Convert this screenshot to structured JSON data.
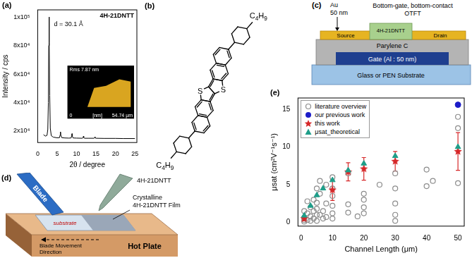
{
  "chart_data": [
    {
      "panel": "(a)",
      "type": "line",
      "x_label": "2θ / degree",
      "y_label": "Intensity / cps",
      "annotations": [
        "d = 30.1 Å",
        "4H-21DNTT"
      ],
      "inset": {
        "title": "Rms 7.87 nm",
        "labels": [
          "0",
          "[nm]",
          "54.74 µm"
        ]
      },
      "x": [
        1.5,
        2.0,
        2.4,
        2.6,
        2.75,
        2.85,
        2.93,
        3.0,
        3.1,
        3.25,
        3.5,
        4.0,
        5.0,
        5.6,
        5.8,
        5.87,
        5.95,
        6.2,
        7.0,
        8.0,
        8.6,
        8.75,
        8.82,
        8.9,
        9.1,
        10.0,
        11.5,
        11.7,
        11.76,
        11.85,
        12.0,
        13.0,
        14.5,
        14.65,
        14.72,
        14.8,
        15.0,
        17.0,
        20.0,
        22.0,
        25.0
      ],
      "values": [
        17500,
        16500,
        17000,
        21000,
        40000,
        80000,
        100000,
        82000,
        45000,
        22000,
        16800,
        15800,
        15300,
        15400,
        17500,
        19500,
        17200,
        15400,
        15200,
        15100,
        15200,
        16800,
        18200,
        16500,
        15200,
        15100,
        15000,
        15600,
        16400,
        15500,
        15000,
        15000,
        15000,
        15500,
        16000,
        15300,
        15000,
        14900,
        14900,
        14800,
        14800
      ],
      "color": "#000000",
      "xlim": [
        0,
        25.5
      ],
      "xticks": [
        0,
        5,
        10,
        15,
        20,
        25
      ],
      "ylim": [
        12000,
        105000
      ],
      "yticks": [
        {
          "value": 20000,
          "label": "2x10⁴"
        },
        {
          "value": 40000,
          "label": "4x10⁴"
        },
        {
          "value": 60000,
          "label": "6x10⁴"
        },
        {
          "value": 80000,
          "label": "8x10⁴"
        },
        {
          "value": 100000,
          "label": "1x10⁵"
        }
      ],
      "grid": false
    },
    {
      "panel": "(e)",
      "type": "scatter",
      "x_label": "Channel Length (μm)",
      "y_label": "μsat (cm²V⁻¹s⁻¹)",
      "xlim": [
        -1,
        52
      ],
      "xticks": [
        0,
        10,
        20,
        30,
        40,
        50
      ],
      "ylim": [
        -0.5,
        16.5
      ],
      "yticks": [
        0,
        5,
        10,
        15
      ],
      "legend": "upper left",
      "grid": false,
      "series": [
        {
          "name": "literature overview",
          "color": "#8c8c8c",
          "marker": "open_circle",
          "x": [
            1,
            1,
            1,
            1,
            2,
            2,
            2,
            3,
            3,
            3,
            4,
            4,
            4,
            5,
            5,
            5,
            5,
            5,
            6,
            6,
            6,
            7,
            7,
            8,
            8,
            8,
            10,
            10,
            10,
            10,
            10,
            10,
            15,
            15,
            15,
            18,
            20,
            20,
            20,
            20,
            25,
            30,
            30,
            30,
            30,
            30,
            40,
            40,
            42,
            50,
            50,
            50
          ],
          "values": [
            0.1,
            0.3,
            0.6,
            1.5,
            0.3,
            1.2,
            2.8,
            0.2,
            0.8,
            2.0,
            0.5,
            1.5,
            3.0,
            0.2,
            1.0,
            1.8,
            2.6,
            4.5,
            1.0,
            3.8,
            5.5,
            0.5,
            1.5,
            0.7,
            2.5,
            5.0,
            0.5,
            1.2,
            2.2,
            3.5,
            4.5,
            6.0,
            1.3,
            2.4,
            6.5,
            0.8,
            1.2,
            2.0,
            3.0,
            3.8,
            5.0,
            0.2,
            1.0,
            2.5,
            4.5,
            6.5,
            4.8,
            7.0,
            5.5,
            5.2,
            12.5,
            14.0
          ]
        },
        {
          "name": "our previous work",
          "color": "#1c1cc8",
          "marker": "circle",
          "x": [
            50
          ],
          "values": [
            15.6
          ]
        },
        {
          "name": "this work",
          "color": "#d62728",
          "marker": "star",
          "x": [
            1,
            10,
            15,
            20,
            30,
            50
          ],
          "values": [
            0.5,
            4.3,
            6.7,
            7.1,
            8.1,
            9.4
          ],
          "errors": [
            0.3,
            1.4,
            1.2,
            1.5,
            1.3,
            2.5
          ]
        },
        {
          "name": "μsat_theoretical",
          "color": "#1f9e89",
          "marker": "triangle",
          "x": [
            1,
            3,
            5,
            7,
            10,
            15,
            20,
            30,
            50
          ],
          "values": [
            0.9,
            2.2,
            3.6,
            4.5,
            5.6,
            6.9,
            7.8,
            8.8,
            10.0
          ]
        }
      ]
    }
  ],
  "molecule": {
    "panel": "(b)",
    "atoms": [
      "S",
      "S"
    ],
    "substituents": [
      "C4H9",
      "C4H9"
    ]
  },
  "device": {
    "panel": "(c)",
    "title": [
      "Bottom-gate, bottom-contact",
      "OTFT"
    ],
    "electrode": [
      "Au",
      "50 nm"
    ],
    "source": "Source",
    "semiconductor": "4H-21DNTT",
    "drain": "Drain",
    "dielectric": "Parylene C",
    "gate": "Gate (Al : 50 nm)",
    "substrate": "Glass or PEN Substrate"
  },
  "coating": {
    "panel": "(d)",
    "blade": "Blade",
    "ink": "4H-21DNTT",
    "substrate": "substrate",
    "film": [
      "Crystalline",
      "4H-21DNTT Film"
    ],
    "movement": [
      "Blade Movement",
      "Direction"
    ],
    "plate": "Hot Plate"
  }
}
